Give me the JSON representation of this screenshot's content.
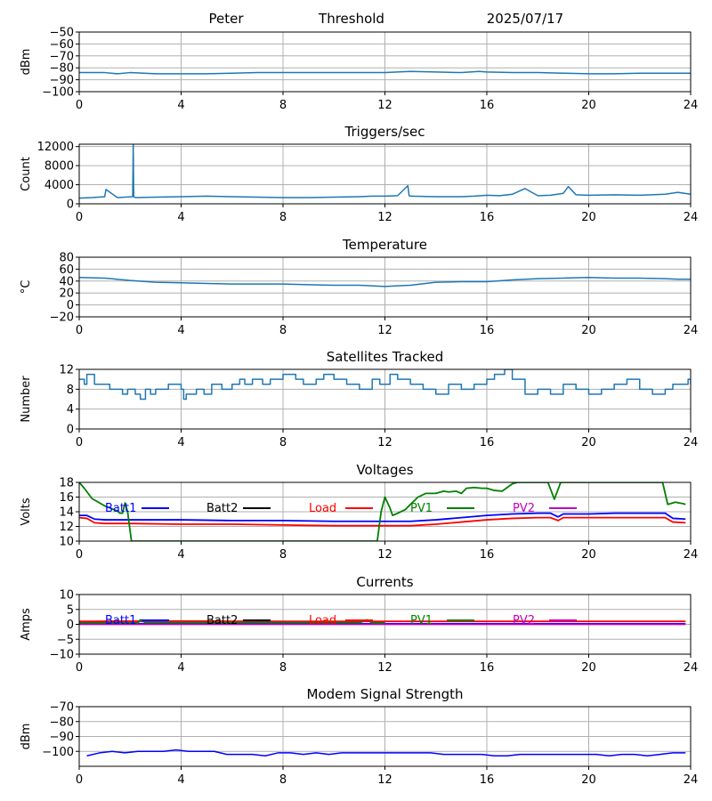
{
  "header": {
    "left": "Peter",
    "center": "Threshold",
    "right": "2025/07/17"
  },
  "colors": {
    "series": "#1f77b4",
    "batt1": "#0000ff",
    "batt2": "#000000",
    "load": "#ff0000",
    "pv1": "#008000",
    "pv2": "#bf00bf",
    "grid": "#b0b0b0"
  },
  "chart_data": [
    {
      "id": "threshold",
      "type": "line",
      "title": "",
      "ylabel": "dBm",
      "xlim": [
        0,
        24
      ],
      "ylim": [
        -100,
        -50
      ],
      "xticks": [
        "0",
        "4",
        "8",
        "12",
        "16",
        "20",
        "24"
      ],
      "yticks": [
        {
          "v": -50,
          "label": "−50"
        },
        {
          "v": -60,
          "label": "−60"
        },
        {
          "v": -70,
          "label": "−70"
        },
        {
          "v": -80,
          "label": "−80"
        },
        {
          "v": -90,
          "label": "−90"
        },
        {
          "v": -100,
          "label": "−100"
        }
      ],
      "grid": true,
      "series": [
        {
          "color": "#1f77b4",
          "x": [
            0,
            1,
            1.5,
            2,
            3,
            4,
            5,
            6,
            7,
            8,
            9,
            10,
            11,
            12,
            13,
            14,
            15,
            15.7,
            16,
            17,
            18,
            19,
            20,
            21,
            22,
            23,
            24
          ],
          "y": [
            -84,
            -84,
            -85,
            -84,
            -85,
            -85,
            -85,
            -84.5,
            -84,
            -84,
            -84,
            -84,
            -84,
            -84,
            -83,
            -83.5,
            -84,
            -83,
            -83.5,
            -84,
            -84,
            -84.5,
            -85,
            -85,
            -84.5,
            -84.5,
            -84.5
          ]
        }
      ]
    },
    {
      "id": "triggers",
      "type": "line",
      "title": "Triggers/sec",
      "ylabel": "Count",
      "xlim": [
        0,
        24
      ],
      "ylim": [
        0,
        12500
      ],
      "xticks": [
        "0",
        "4",
        "8",
        "12",
        "16",
        "20",
        "24"
      ],
      "yticks": [
        {
          "v": 0,
          "label": "0"
        },
        {
          "v": 4000,
          "label": "4000"
        },
        {
          "v": 8000,
          "label": "8000"
        },
        {
          "v": 12000,
          "label": "12000"
        }
      ],
      "grid": true,
      "series": [
        {
          "color": "#1f77b4",
          "x": [
            0,
            0.5,
            1,
            1.05,
            1.5,
            2.1,
            2.12,
            2.14,
            2.2,
            3,
            4,
            5,
            6,
            7,
            8,
            9,
            10,
            11,
            11.5,
            12,
            12.5,
            12.9,
            12.95,
            13,
            14,
            15,
            15.5,
            16,
            16.5,
            17,
            17.5,
            18,
            18.5,
            19,
            19.2,
            19.5,
            20,
            21,
            22,
            23,
            23.5,
            24
          ],
          "y": [
            1200,
            1300,
            1500,
            3000,
            1300,
            1500,
            12400,
            1500,
            1300,
            1400,
            1500,
            1600,
            1500,
            1400,
            1300,
            1300,
            1400,
            1500,
            1600,
            1600,
            1700,
            3800,
            1700,
            1600,
            1500,
            1500,
            1600,
            1800,
            1700,
            2000,
            3200,
            1700,
            1800,
            2200,
            3600,
            1900,
            1800,
            1900,
            1800,
            2000,
            2400,
            2000
          ]
        }
      ]
    },
    {
      "id": "temperature",
      "type": "line",
      "title": "Temperature",
      "ylabel": "°C",
      "xlim": [
        0,
        24
      ],
      "ylim": [
        -20,
        80
      ],
      "xticks": [
        "0",
        "4",
        "8",
        "12",
        "16",
        "20",
        "24"
      ],
      "yticks": [
        {
          "v": -20,
          "label": "−20"
        },
        {
          "v": 0,
          "label": "0"
        },
        {
          "v": 20,
          "label": "20"
        },
        {
          "v": 40,
          "label": "40"
        },
        {
          "v": 60,
          "label": "60"
        },
        {
          "v": 80,
          "label": "80"
        }
      ],
      "grid": true,
      "series": [
        {
          "color": "#1f77b4",
          "x": [
            0,
            1,
            2,
            3,
            4,
            5,
            6,
            7,
            8,
            9,
            10,
            11,
            12,
            12.5,
            13,
            14,
            15,
            16,
            17,
            18,
            19,
            20,
            21,
            22,
            23,
            23.5,
            24
          ],
          "y": [
            46,
            45,
            41,
            38,
            37,
            36,
            35,
            35,
            35,
            34,
            33,
            33,
            31,
            32,
            33,
            38,
            39,
            39,
            42,
            44,
            45,
            46,
            45,
            45,
            44,
            43,
            43
          ]
        }
      ]
    },
    {
      "id": "satellites",
      "type": "line",
      "title": "Satellites Tracked",
      "ylabel": "Number",
      "xlim": [
        0,
        24
      ],
      "ylim": [
        0,
        12
      ],
      "xticks": [
        "0",
        "4",
        "8",
        "12",
        "16",
        "20",
        "24"
      ],
      "yticks": [
        {
          "v": 0,
          "label": "0"
        },
        {
          "v": 4,
          "label": "4"
        },
        {
          "v": 8,
          "label": "8"
        },
        {
          "v": 12,
          "label": "12"
        }
      ],
      "grid": true,
      "series": [
        {
          "color": "#1f77b4",
          "step": true,
          "x": [
            0,
            0.2,
            0.3,
            0.6,
            1.2,
            1.7,
            1.9,
            2.2,
            2.4,
            2.6,
            2.8,
            3.0,
            3.5,
            4.0,
            4.1,
            4.2,
            4.6,
            4.9,
            5.2,
            5.6,
            6.0,
            6.3,
            6.5,
            6.8,
            7.2,
            7.5,
            8.0,
            8.5,
            8.8,
            9.3,
            9.6,
            10.0,
            10.5,
            11.0,
            11.5,
            11.8,
            12.2,
            12.5,
            13.0,
            13.5,
            14.0,
            14.5,
            15.0,
            15.5,
            16.0,
            16.3,
            16.7,
            17.0,
            17.5,
            18.0,
            18.5,
            19.0,
            19.5,
            20.0,
            20.5,
            21.0,
            21.5,
            22.0,
            22.5,
            23.0,
            23.3,
            23.9,
            24
          ],
          "y": [
            10,
            9,
            11,
            9,
            8,
            7,
            8,
            7,
            6,
            8,
            7,
            8,
            9,
            8,
            6,
            7,
            8,
            7,
            9,
            8,
            9,
            10,
            9,
            10,
            9,
            10,
            11,
            10,
            9,
            10,
            11,
            10,
            9,
            8,
            10,
            9,
            11,
            10,
            9,
            8,
            7,
            9,
            8,
            9,
            10,
            11,
            12,
            10,
            7,
            8,
            7,
            9,
            8,
            7,
            8,
            9,
            10,
            8,
            7,
            8,
            9,
            10,
            9
          ]
        }
      ]
    },
    {
      "id": "voltages",
      "type": "line",
      "title": "Voltages",
      "ylabel": "Volts",
      "xlim": [
        0,
        24
      ],
      "ylim": [
        10,
        18
      ],
      "xticks": [
        "0",
        "4",
        "8",
        "12",
        "16",
        "20",
        "24"
      ],
      "yticks": [
        {
          "v": 10,
          "label": "10"
        },
        {
          "v": 12,
          "label": "12"
        },
        {
          "v": 14,
          "label": "14"
        },
        {
          "v": 16,
          "label": "16"
        },
        {
          "v": 18,
          "label": "18"
        }
      ],
      "grid": true,
      "legend": [
        "Batt1",
        "Batt2",
        "Load",
        "PV1",
        "PV2"
      ],
      "series": [
        {
          "name": "Batt1",
          "color": "#0000ff",
          "x": [
            0,
            0.3,
            0.6,
            1,
            2,
            3,
            4,
            6,
            8,
            10,
            12,
            13,
            14,
            15,
            16,
            17,
            18,
            18.5,
            18.8,
            19,
            20,
            21,
            22,
            23,
            23.3,
            23.8
          ],
          "y": [
            13.5,
            13.5,
            13.0,
            12.9,
            12.9,
            12.9,
            12.9,
            12.8,
            12.8,
            12.7,
            12.7,
            12.7,
            12.9,
            13.2,
            13.5,
            13.7,
            13.8,
            13.8,
            13.3,
            13.7,
            13.7,
            13.8,
            13.8,
            13.8,
            13.1,
            13.0
          ]
        },
        {
          "name": "Load",
          "color": "#ff0000",
          "x": [
            0,
            0.3,
            0.6,
            1,
            2,
            4,
            6,
            8,
            10,
            12,
            13,
            14,
            15,
            16,
            17,
            18,
            18.5,
            18.8,
            19,
            20,
            21,
            22,
            23,
            23.3,
            23.8
          ],
          "y": [
            13.2,
            13.1,
            12.5,
            12.4,
            12.4,
            12.3,
            12.3,
            12.2,
            12.1,
            12.1,
            12.1,
            12.3,
            12.6,
            12.9,
            13.1,
            13.2,
            13.2,
            12.8,
            13.2,
            13.2,
            13.2,
            13.2,
            13.2,
            12.6,
            12.5
          ]
        },
        {
          "name": "PV1",
          "color": "#008000",
          "x": [
            0,
            0.2,
            0.5,
            1,
            1.5,
            1.6,
            1.7,
            1.8,
            1.9,
            2.05,
            11.7,
            11.85,
            12.0,
            12.2,
            12.3,
            12.5,
            12.8,
            13.0,
            13.3,
            13.6,
            14.0,
            14.3,
            14.5,
            14.8,
            15.0,
            15.2,
            15.5,
            15.8,
            16.0,
            16.3,
            16.6,
            17.0,
            17.2,
            17.3,
            18.4,
            18.65,
            18.9,
            19.05,
            22.9,
            23.1,
            23.4,
            23.7,
            23.8
          ],
          "y": [
            18.0,
            17.2,
            15.8,
            14.8,
            14.1,
            13.8,
            13.8,
            15.2,
            14.0,
            10.0,
            10.0,
            14.0,
            16.0,
            14.5,
            13.5,
            13.8,
            14.3,
            15.0,
            16.0,
            16.5,
            16.5,
            16.8,
            16.7,
            16.8,
            16.5,
            17.2,
            17.3,
            17.2,
            17.2,
            16.9,
            16.8,
            17.8,
            18.0,
            18.0,
            18.0,
            15.7,
            18.0,
            18.0,
            18.0,
            15.0,
            15.3,
            15.1,
            15.0
          ]
        }
      ]
    },
    {
      "id": "currents",
      "type": "line",
      "title": "Currents",
      "ylabel": "Amps",
      "xlim": [
        0,
        24
      ],
      "ylim": [
        -10,
        10
      ],
      "xticks": [
        "0",
        "4",
        "8",
        "12",
        "16",
        "20",
        "24"
      ],
      "yticks": [
        {
          "v": -10,
          "label": "−10"
        },
        {
          "v": -5,
          "label": "−5"
        },
        {
          "v": 0,
          "label": "0"
        },
        {
          "v": 5,
          "label": "5"
        },
        {
          "v": 10,
          "label": "10"
        }
      ],
      "grid": true,
      "legend": [
        "Batt1",
        "Batt2",
        "Load",
        "PV1",
        "PV2"
      ],
      "series": [
        {
          "name": "Batt1",
          "color": "#0000ff",
          "x": [
            0,
            23.8
          ],
          "y": [
            0.2,
            0.2
          ]
        },
        {
          "name": "Load",
          "color": "#ff0000",
          "x": [
            0,
            4,
            8,
            12,
            16,
            20,
            23.8
          ],
          "y": [
            1.0,
            1.1,
            1.0,
            1.0,
            1.0,
            1.0,
            1.0
          ]
        },
        {
          "name": "PV1",
          "color": "#008000",
          "x": [
            0,
            2.3,
            2.4,
            2.6,
            6,
            11,
            11.3,
            11.5,
            12
          ],
          "y": [
            0.5,
            0.5,
            1.5,
            0.6,
            0.6,
            0.6,
            1.5,
            0.5,
            0.5
          ]
        },
        {
          "name": "PV2",
          "color": "#bf00bf",
          "x": [
            0,
            23.8
          ],
          "y": [
            0,
            0
          ]
        }
      ]
    },
    {
      "id": "modem",
      "type": "line",
      "title": "Modem Signal Strength",
      "ylabel": "dBm",
      "xlim": [
        0,
        24
      ],
      "ylim": [
        -110,
        -70
      ],
      "xticks": [
        "0",
        "4",
        "8",
        "12",
        "16",
        "20",
        "24"
      ],
      "yticks": [
        {
          "v": -70,
          "label": "−70"
        },
        {
          "v": -80,
          "label": "−80"
        },
        {
          "v": -90,
          "label": "−90"
        },
        {
          "v": -100,
          "label": "−100"
        }
      ],
      "grid": true,
      "series": [
        {
          "name": "",
          "color": "#0000ff",
          "x": [
            0.3,
            0.8,
            1.3,
            1.8,
            2.3,
            2.8,
            3.3,
            3.8,
            4.3,
            4.8,
            5.3,
            5.8,
            6.3,
            6.8,
            7.3,
            7.8,
            8.3,
            8.8,
            9.3,
            9.8,
            10.3,
            10.8,
            11.3,
            11.8,
            12.3,
            12.8,
            13.3,
            13.8,
            14.3,
            14.8,
            15.3,
            15.8,
            16.3,
            16.8,
            17.3,
            17.8,
            18.3,
            18.8,
            19.3,
            19.8,
            20.3,
            20.8,
            21.3,
            21.8,
            22.3,
            22.8,
            23.3,
            23.8
          ],
          "y": [
            -103,
            -101,
            -100,
            -101,
            -100,
            -100,
            -100,
            -99,
            -100,
            -100,
            -100,
            -102,
            -102,
            -102,
            -103,
            -101,
            -101,
            -102,
            -101,
            -102,
            -101,
            -101,
            -101,
            -101,
            -101,
            -101,
            -101,
            -101,
            -102,
            -102,
            -102,
            -102,
            -103,
            -103,
            -102,
            -102,
            -102,
            -102,
            -102,
            -102,
            -102,
            -103,
            -102,
            -102,
            -103,
            -102,
            -101,
            -101
          ]
        }
      ]
    }
  ]
}
